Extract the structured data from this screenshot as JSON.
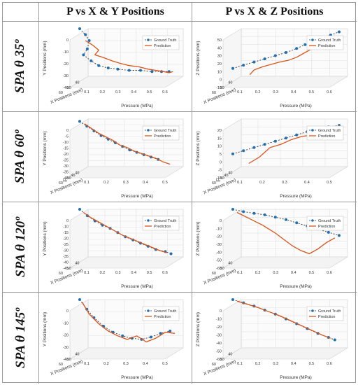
{
  "headers": {
    "corner": "",
    "col1": "P vs X & Y Positions",
    "col2": "P vs X & Z Positions"
  },
  "rows": [
    {
      "label": "SPA θ 35º"
    },
    {
      "label": "SPA θ 60º"
    },
    {
      "label": "SPA θ 120º"
    },
    {
      "label": "SPA θ 145º"
    }
  ],
  "colors": {
    "ground_truth": "#1f6fb4",
    "prediction": "#d9541a",
    "axis": "#555555",
    "grid": "#e2e2e2"
  },
  "chart_data": [
    {
      "type": "line",
      "row": "SPA θ 35º",
      "panel": "P vs X & Y Positions",
      "xlabel": "Pressure (MPa)",
      "ylabel": "Y Positions (mm)",
      "depthlabel": "X Positions (mm)",
      "xlim": [
        0.1,
        0.6
      ],
      "ylim": [
        -40,
        0
      ],
      "xticks": [
        "0.1",
        "0.2",
        "0.3",
        "0.4",
        "0.5",
        "0.6"
      ],
      "yticks": [
        "0",
        "-10",
        "-20",
        "-30",
        "-40"
      ],
      "depthticks": [
        "60",
        "50",
        "40"
      ],
      "series": [
        {
          "name": "Ground Truth",
          "x": [
            0.1,
            0.13,
            0.15,
            0.14,
            0.12,
            0.16,
            0.2,
            0.25,
            0.3,
            0.36,
            0.42,
            0.48,
            0.53,
            0.57
          ],
          "y": [
            0,
            -5,
            -10,
            -17,
            -22,
            -27,
            -31,
            -33,
            -34,
            -35,
            -35,
            -36,
            -36,
            -36
          ]
        },
        {
          "name": "Prediction",
          "x": [
            0.13,
            0.17,
            0.2,
            0.18,
            0.22,
            0.27,
            0.31,
            0.36,
            0.41,
            0.46,
            0.5,
            0.54,
            0.57,
            0.59
          ],
          "y": [
            -10,
            -14,
            -18,
            -22,
            -24,
            -27,
            -29,
            -31,
            -32,
            -34,
            -35,
            -36,
            -37,
            -36
          ]
        }
      ]
    },
    {
      "type": "line",
      "row": "SPA θ 35º",
      "panel": "P vs X & Z Positions",
      "xlabel": "Pressure (MPa)",
      "ylabel": "Z Positions (mm)",
      "depthlabel": "X Positions (mm)",
      "xlim": [
        0.1,
        0.6
      ],
      "ylim": [
        -10,
        50
      ],
      "xticks": [
        "0.1",
        "0.2",
        "0.3",
        "0.4",
        "0.5",
        "0.6"
      ],
      "yticks": [
        "50",
        "40",
        "30",
        "20",
        "10",
        "0",
        "-10"
      ],
      "depthticks": [
        "60",
        "50",
        "40"
      ],
      "series": [
        {
          "name": "Ground Truth",
          "x": [
            0.1,
            0.15,
            0.2,
            0.25,
            0.3,
            0.35,
            0.4,
            0.44,
            0.48,
            0.52,
            0.56,
            0.6
          ],
          "y": [
            0,
            4,
            8,
            12,
            16,
            20,
            25,
            30,
            34,
            38,
            42,
            46
          ]
        },
        {
          "name": "Prediction",
          "x": [
            0.18,
            0.2,
            0.24,
            0.28,
            0.32,
            0.36,
            0.4,
            0.44,
            0.48,
            0.52,
            0.55,
            0.58
          ],
          "y": [
            -8,
            -2,
            2,
            5,
            8,
            10,
            14,
            20,
            26,
            30,
            36,
            40
          ]
        }
      ]
    },
    {
      "type": "line",
      "row": "SPA θ 60º",
      "panel": "P vs X & Y Positions",
      "xlabel": "Pressure (MPa)",
      "ylabel": "Y Positions (mm)",
      "depthlabel": "X Positions (mm)",
      "xlim": [
        0.1,
        0.5
      ],
      "ylim": [
        -40,
        0
      ],
      "xticks": [
        "0.1",
        "0.2",
        "0.3",
        "0.4",
        "0.5"
      ],
      "yticks": [
        "0",
        "-5",
        "-10",
        "-15",
        "-20",
        "-25",
        "-30",
        "-35",
        "-40"
      ],
      "depthticks": [
        "60",
        "55",
        "50",
        "45",
        "40"
      ],
      "series": [
        {
          "name": "Ground Truth",
          "x": [
            0.1,
            0.13,
            0.16,
            0.19,
            0.22,
            0.25,
            0.28,
            0.31,
            0.34,
            0.37,
            0.4,
            0.43
          ],
          "y": [
            -2,
            -6,
            -10,
            -14,
            -17,
            -20,
            -23,
            -26,
            -28,
            -30,
            -32,
            -34
          ]
        },
        {
          "name": "Prediction",
          "x": [
            0.12,
            0.15,
            0.18,
            0.21,
            0.24,
            0.27,
            0.3,
            0.33,
            0.36,
            0.39,
            0.42,
            0.45,
            0.48
          ],
          "y": [
            -4,
            -8,
            -12,
            -15,
            -18,
            -22,
            -24,
            -27,
            -29,
            -31,
            -33,
            -36,
            -38
          ]
        }
      ]
    },
    {
      "type": "line",
      "row": "SPA θ 60º",
      "panel": "P vs X & Z Positions",
      "xlabel": "Pressure (MPa)",
      "ylabel": "Z Positions (mm)",
      "depthlabel": "X Positions (mm)",
      "xlim": [
        0.1,
        0.5
      ],
      "ylim": [
        -10,
        20
      ],
      "xticks": [
        "0.1",
        "0.2",
        "0.3",
        "0.4",
        "0.5"
      ],
      "yticks": [
        "20",
        "15",
        "10",
        "5",
        "0",
        "-5",
        "-10"
      ],
      "depthticks": [
        "60",
        "55",
        "50",
        "45",
        "40"
      ],
      "series": [
        {
          "name": "Ground Truth",
          "x": [
            0.1,
            0.14,
            0.18,
            0.22,
            0.26,
            0.3,
            0.34,
            0.38,
            0.42,
            0.46,
            0.5
          ],
          "y": [
            -2,
            0,
            2,
            4,
            6,
            8,
            10,
            12,
            14,
            15,
            16
          ]
        },
        {
          "name": "Prediction",
          "x": [
            0.16,
            0.2,
            0.24,
            0.28,
            0.32,
            0.36,
            0.4,
            0.44,
            0.48,
            0.5
          ],
          "y": [
            -8,
            -4,
            2,
            4,
            7,
            9,
            10,
            12,
            14,
            16
          ]
        }
      ]
    },
    {
      "type": "line",
      "row": "SPA θ 120º",
      "panel": "P vs X & Y Positions",
      "xlabel": "Pressure (MPa)",
      "ylabel": "Y Positions (mm)",
      "depthlabel": "X Positions (mm)",
      "xlim": [
        0.1,
        0.6
      ],
      "ylim": [
        -45,
        0
      ],
      "xticks": [
        "0.1",
        "0.2",
        "0.3",
        "0.4",
        "0.5",
        "0.6"
      ],
      "yticks": [
        "0",
        "-10",
        "-15",
        "-20",
        "-25",
        "-30",
        "-35",
        "-40",
        "-45"
      ],
      "depthticks": [
        "60",
        "50",
        "40"
      ],
      "series": [
        {
          "name": "Ground Truth",
          "x": [
            0.1,
            0.14,
            0.18,
            0.22,
            0.26,
            0.3,
            0.34,
            0.38,
            0.42,
            0.46,
            0.5,
            0.55,
            0.58
          ],
          "y": [
            0,
            -6,
            -11,
            -15,
            -18,
            -22,
            -26,
            -29,
            -32,
            -35,
            -38,
            -40,
            -42
          ]
        },
        {
          "name": "Prediction",
          "x": [
            0.12,
            0.16,
            0.2,
            0.24,
            0.28,
            0.32,
            0.36,
            0.4,
            0.44,
            0.48,
            0.52,
            0.56
          ],
          "y": [
            -3,
            -8,
            -12,
            -16,
            -20,
            -24,
            -27,
            -30,
            -33,
            -36,
            -39,
            -41
          ]
        }
      ]
    },
    {
      "type": "line",
      "row": "SPA θ 120º",
      "panel": "P vs X & Z Positions",
      "xlabel": "Pressure (MPa)",
      "ylabel": "Z Positions (mm)",
      "depthlabel": "X Positions (mm)",
      "xlim": [
        0.1,
        0.6
      ],
      "ylim": [
        -60,
        0
      ],
      "xticks": [
        "0.1",
        "0.2",
        "0.3",
        "0.4",
        "0.5",
        "0.6"
      ],
      "yticks": [
        "0",
        "-10",
        "-20",
        "-30",
        "-40",
        "-50",
        "-60"
      ],
      "depthticks": [
        "60",
        "50",
        "40"
      ],
      "series": [
        {
          "name": "Ground Truth",
          "x": [
            0.1,
            0.15,
            0.2,
            0.25,
            0.3,
            0.35,
            0.4,
            0.45,
            0.5,
            0.55,
            0.6
          ],
          "y": [
            0,
            -3,
            -5,
            -7,
            -10,
            -13,
            -17,
            -21,
            -25,
            -29,
            -33
          ]
        },
        {
          "name": "Prediction",
          "x": [
            0.12,
            0.18,
            0.24,
            0.3,
            0.34,
            0.38,
            0.42,
            0.46,
            0.5,
            0.54,
            0.58
          ],
          "y": [
            -4,
            -12,
            -20,
            -30,
            -38,
            -46,
            -52,
            -56,
            -50,
            -42,
            -36
          ]
        }
      ]
    },
    {
      "type": "line",
      "row": "SPA θ 145º",
      "panel": "P vs X & Y Positions",
      "xlabel": "Pressure (MPa)",
      "ylabel": "Y Positions (mm)",
      "depthlabel": "X Positions (mm)",
      "xlim": [
        0.1,
        0.5
      ],
      "ylim": [
        -40,
        0
      ],
      "xticks": [
        "0.1",
        "0.2",
        "0.3",
        "0.4",
        "0.5"
      ],
      "yticks": [
        "0",
        "-10",
        "-20",
        "-30",
        "-40"
      ],
      "depthticks": [
        "60",
        "50",
        "40"
      ],
      "series": [
        {
          "name": "Ground Truth",
          "x": [
            0.1,
            0.13,
            0.16,
            0.2,
            0.24,
            0.28,
            0.32,
            0.36,
            0.4,
            0.44,
            0.48
          ],
          "y": [
            0,
            -8,
            -15,
            -22,
            -27,
            -30,
            -32,
            -33,
            -31,
            -28,
            -26
          ]
        },
        {
          "name": "Prediction",
          "x": [
            0.11,
            0.14,
            0.18,
            0.22,
            0.26,
            0.3,
            0.34,
            0.38,
            0.42,
            0.46,
            0.5
          ],
          "y": [
            -2,
            -12,
            -20,
            -26,
            -30,
            -33,
            -30,
            -35,
            -32,
            -27,
            -28
          ]
        }
      ]
    },
    {
      "type": "line",
      "row": "SPA θ 145º",
      "panel": "P vs X & Z Positions",
      "xlabel": "Pressure (MPa)",
      "ylabel": "Z Positions (mm)",
      "depthlabel": "X Positions (mm)",
      "xlim": [
        0.1,
        0.6
      ],
      "ylim": [
        -60,
        0
      ],
      "xticks": [
        "0.1",
        "0.2",
        "0.3",
        "0.4",
        "0.5",
        "0.6"
      ],
      "yticks": [
        "0",
        "-10",
        "-20",
        "-30",
        "-40",
        "-50",
        "-60"
      ],
      "depthticks": [
        "60",
        "50",
        "40"
      ],
      "series": [
        {
          "name": "Ground Truth",
          "x": [
            0.1,
            0.15,
            0.2,
            0.25,
            0.3,
            0.35,
            0.4,
            0.45,
            0.5,
            0.55,
            0.58
          ],
          "y": [
            0,
            -4,
            -8,
            -13,
            -18,
            -24,
            -30,
            -36,
            -42,
            -47,
            -50
          ]
        },
        {
          "name": "Prediction",
          "x": [
            0.12,
            0.17,
            0.22,
            0.27,
            0.32,
            0.37,
            0.42,
            0.47,
            0.52,
            0.56
          ],
          "y": [
            -2,
            -6,
            -10,
            -15,
            -20,
            -26,
            -32,
            -38,
            -44,
            -48
          ]
        }
      ]
    }
  ]
}
